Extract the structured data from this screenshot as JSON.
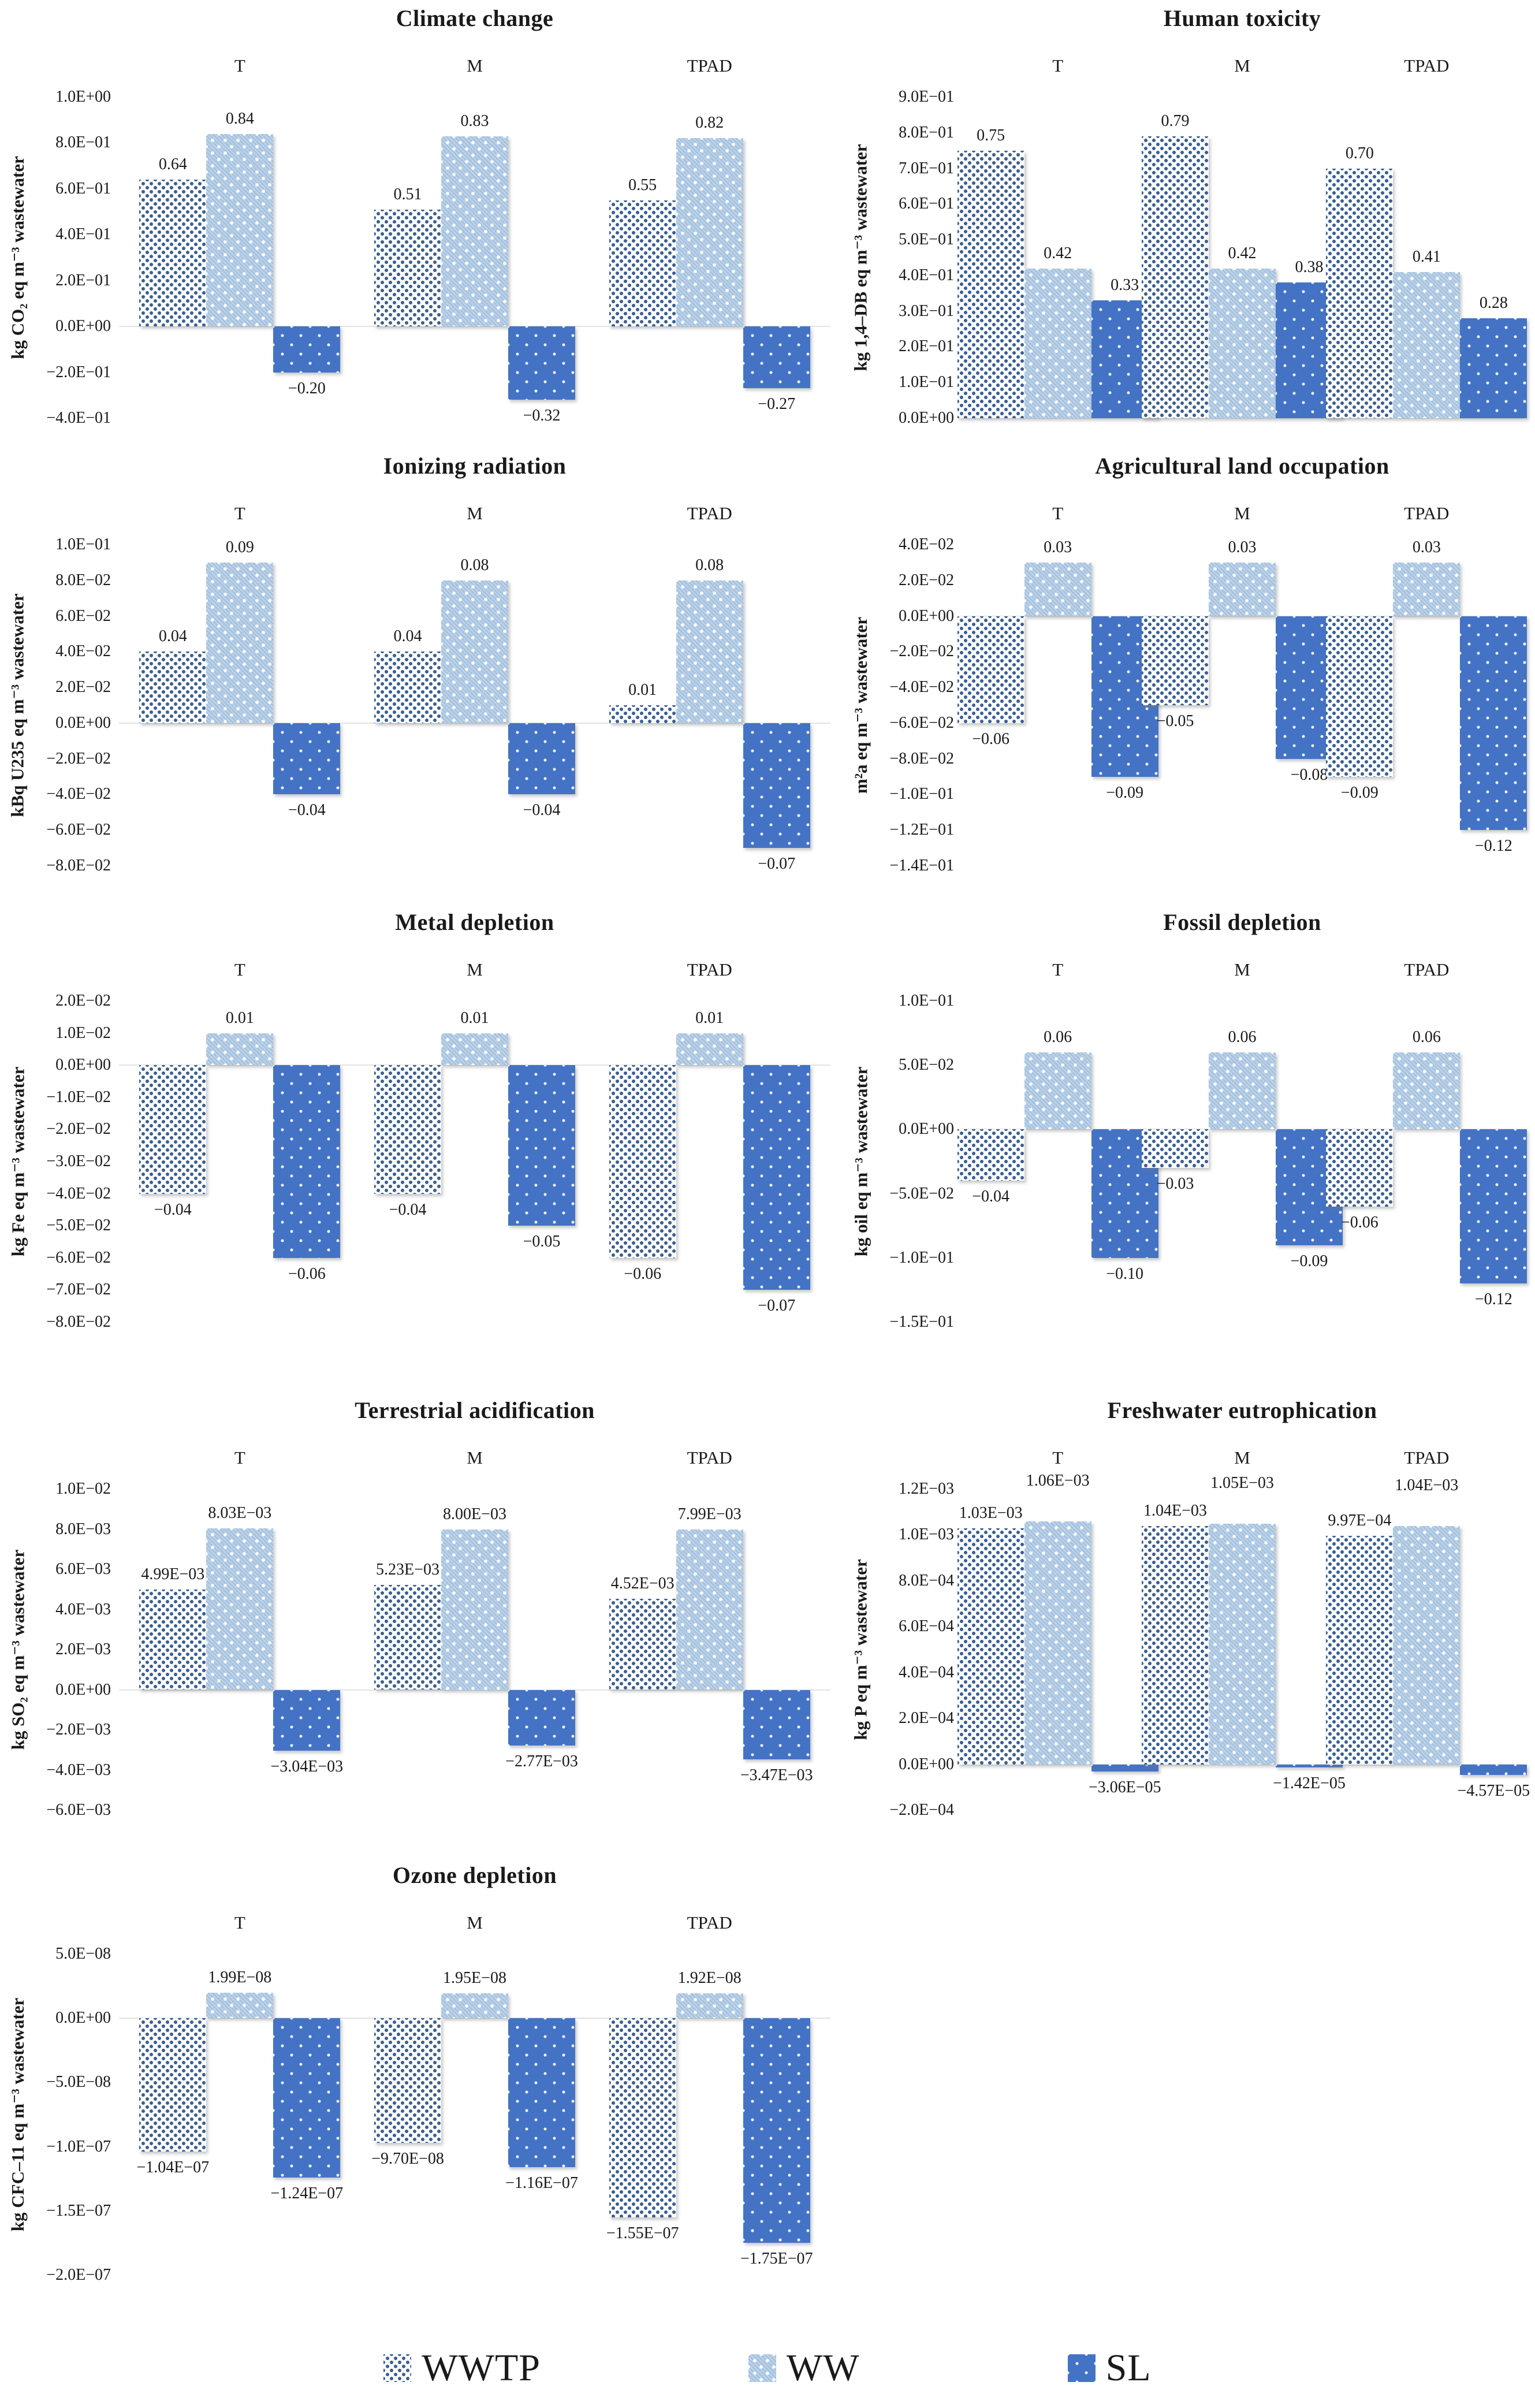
{
  "legend": {
    "items": [
      {
        "label": "WWTP",
        "series": "wwtp"
      },
      {
        "label": "WW",
        "series": "ww"
      },
      {
        "label": "SL",
        "series": "sl"
      }
    ]
  },
  "colors": {
    "wwtp_dot": "#3a5f91",
    "ww_background": "#a6c3e0",
    "sl_background": "#4473c5",
    "zero_line": "#e3e3e3",
    "text": "#1a1a1a"
  },
  "chart_data": [
    {
      "type": "bar",
      "title": "Climate change",
      "ylabel": "kg CO₂ eq m⁻³ wastewater",
      "ylim": [
        -0.4,
        1.0
      ],
      "legend_position": "bottom",
      "grid": false,
      "categories": [
        "T",
        "M",
        "TPAD"
      ],
      "series": [
        "WWTP",
        "WW",
        "SL"
      ],
      "ticks": {
        "labels": [
          "1.0E+00",
          "8.0E−01",
          "6.0E−01",
          "4.0E−01",
          "2.0E−01",
          "0.0E+00",
          "−2.0E−01",
          "−4.0E−01"
        ],
        "values": [
          1.0,
          0.8,
          0.6,
          0.4,
          0.2,
          0.0,
          -0.2,
          -0.4
        ]
      },
      "groups": [
        {
          "name": "T",
          "values": [
            0.64,
            0.84,
            -0.2
          ],
          "labels": [
            "0.64",
            "0.84",
            "−0.20"
          ]
        },
        {
          "name": "M",
          "values": [
            0.51,
            0.83,
            -0.32
          ],
          "labels": [
            "0.51",
            "0.83",
            "−0.32"
          ]
        },
        {
          "name": "TPAD",
          "values": [
            0.55,
            0.82,
            -0.27
          ],
          "labels": [
            "0.55",
            "0.82",
            "−0.27"
          ]
        }
      ]
    },
    {
      "type": "bar",
      "title": "Human toxicity",
      "ylabel": "kg 1,4–DB eq m⁻³ wastewater",
      "ylim": [
        0.0,
        0.9
      ],
      "categories": [
        "T",
        "M",
        "TPAD"
      ],
      "series": [
        "WWTP",
        "WW",
        "SL"
      ],
      "ticks": {
        "labels": [
          "9.0E−01",
          "8.0E−01",
          "7.0E−01",
          "6.0E−01",
          "5.0E−01",
          "4.0E−01",
          "3.0E−01",
          "2.0E−01",
          "1.0E−01",
          "0.0E+00"
        ],
        "values": [
          0.9,
          0.8,
          0.7,
          0.6,
          0.5,
          0.4,
          0.3,
          0.2,
          0.1,
          0.0
        ]
      },
      "groups": [
        {
          "name": "T",
          "values": [
            0.75,
            0.42,
            0.33
          ],
          "labels": [
            "0.75",
            "0.42",
            "0.33"
          ]
        },
        {
          "name": "M",
          "values": [
            0.79,
            0.42,
            0.38
          ],
          "labels": [
            "0.79",
            "0.42",
            "0.38"
          ]
        },
        {
          "name": "TPAD",
          "values": [
            0.7,
            0.41,
            0.28
          ],
          "labels": [
            "0.70",
            "0.41",
            "0.28"
          ]
        }
      ]
    },
    {
      "type": "bar",
      "title": "Ionizing radiation",
      "ylabel": "kBq U235 eq m⁻³ wastewater",
      "ylim": [
        -0.08,
        0.1
      ],
      "categories": [
        "T",
        "M",
        "TPAD"
      ],
      "series": [
        "WWTP",
        "WW",
        "SL"
      ],
      "ticks": {
        "labels": [
          "1.0E−01",
          "8.0E−02",
          "6.0E−02",
          "4.0E−02",
          "2.0E−02",
          "0.0E+00",
          "−2.0E−02",
          "−4.0E−02",
          "−6.0E−02",
          "−8.0E−02"
        ],
        "values": [
          0.1,
          0.08,
          0.06,
          0.04,
          0.02,
          0.0,
          -0.02,
          -0.04,
          -0.06,
          -0.08
        ]
      },
      "groups": [
        {
          "name": "T",
          "values": [
            0.04,
            0.09,
            -0.04
          ],
          "labels": [
            "0.04",
            "0.09",
            "−0.04"
          ]
        },
        {
          "name": "M",
          "values": [
            0.04,
            0.08,
            -0.04
          ],
          "labels": [
            "0.04",
            "0.08",
            "−0.04"
          ]
        },
        {
          "name": "TPAD",
          "values": [
            0.01,
            0.08,
            -0.07
          ],
          "labels": [
            "0.01",
            "0.08",
            "−0.07"
          ]
        }
      ]
    },
    {
      "type": "bar",
      "title": "Agricultural land occupation",
      "ylabel": "m²a eq m⁻³ wastewater",
      "ylim": [
        -0.14,
        0.04
      ],
      "categories": [
        "T",
        "M",
        "TPAD"
      ],
      "series": [
        "WWTP",
        "WW",
        "SL"
      ],
      "ticks": {
        "labels": [
          "4.0E−02",
          "2.0E−02",
          "0.0E+00",
          "−2.0E−02",
          "−4.0E−02",
          "−6.0E−02",
          "−8.0E−02",
          "−1.0E−01",
          "−1.2E−01",
          "−1.4E−01"
        ],
        "values": [
          0.04,
          0.02,
          0.0,
          -0.02,
          -0.04,
          -0.06,
          -0.08,
          -0.1,
          -0.12,
          -0.14
        ]
      },
      "groups": [
        {
          "name": "T",
          "values": [
            -0.06,
            0.03,
            -0.09
          ],
          "labels": [
            "−0.06",
            "0.03",
            "−0.09"
          ]
        },
        {
          "name": "M",
          "values": [
            -0.05,
            0.03,
            -0.08
          ],
          "labels": [
            "−0.05",
            "0.03",
            "−0.08"
          ]
        },
        {
          "name": "TPAD",
          "values": [
            -0.09,
            0.03,
            -0.12
          ],
          "labels": [
            "−0.09",
            "0.03",
            "−0.12"
          ]
        }
      ]
    },
    {
      "type": "bar",
      "title": "Metal depletion",
      "ylabel": "kg Fe eq m⁻³ wastewater",
      "ylim": [
        -0.08,
        0.02
      ],
      "categories": [
        "T",
        "M",
        "TPAD"
      ],
      "series": [
        "WWTP",
        "WW",
        "SL"
      ],
      "ticks": {
        "labels": [
          "2.0E−02",
          "1.0E−02",
          "0.0E+00",
          "−1.0E−02",
          "−2.0E−02",
          "−3.0E−02",
          "−4.0E−02",
          "−5.0E−02",
          "−6.0E−02",
          "−7.0E−02",
          "−8.0E−02"
        ],
        "values": [
          0.02,
          0.01,
          0.0,
          -0.01,
          -0.02,
          -0.03,
          -0.04,
          -0.05,
          -0.06,
          -0.07,
          -0.08
        ]
      },
      "groups": [
        {
          "name": "T",
          "values": [
            -0.04,
            0.01,
            -0.06
          ],
          "labels": [
            "−0.04",
            "0.01",
            "−0.06"
          ]
        },
        {
          "name": "M",
          "values": [
            -0.04,
            0.01,
            -0.05
          ],
          "labels": [
            "−0.04",
            "0.01",
            "−0.05"
          ]
        },
        {
          "name": "TPAD",
          "values": [
            -0.06,
            0.01,
            -0.07
          ],
          "labels": [
            "−0.06",
            "0.01",
            "−0.07"
          ]
        }
      ]
    },
    {
      "type": "bar",
      "title": "Fossil depletion",
      "ylabel": "kg oil eq m⁻³ wastewater",
      "ylim": [
        -0.15,
        0.1
      ],
      "categories": [
        "T",
        "M",
        "TPAD"
      ],
      "series": [
        "WWTP",
        "WW",
        "SL"
      ],
      "ticks": {
        "labels": [
          "1.0E−01",
          "5.0E−02",
          "0.0E+00",
          "−5.0E−02",
          "−1.0E−01",
          "−1.5E−01"
        ],
        "values": [
          0.1,
          0.05,
          0.0,
          -0.05,
          -0.1,
          -0.15
        ]
      },
      "groups": [
        {
          "name": "T",
          "values": [
            -0.04,
            0.06,
            -0.1
          ],
          "labels": [
            "−0.04",
            "0.06",
            "−0.10"
          ]
        },
        {
          "name": "M",
          "values": [
            -0.03,
            0.06,
            -0.09
          ],
          "labels": [
            "−0.03",
            "0.06",
            "−0.09"
          ]
        },
        {
          "name": "TPAD",
          "values": [
            -0.06,
            0.06,
            -0.12
          ],
          "labels": [
            "−0.06",
            "0.06",
            "−0.12"
          ]
        }
      ]
    },
    {
      "type": "bar",
      "title": "Terrestrial acidification",
      "ylabel": "kg SO₂ eq m⁻³ wastewater",
      "ylim": [
        -0.006,
        0.01
      ],
      "categories": [
        "T",
        "M",
        "TPAD"
      ],
      "series": [
        "WWTP",
        "WW",
        "SL"
      ],
      "ticks": {
        "labels": [
          "1.0E−02",
          "8.0E−03",
          "6.0E−03",
          "4.0E−03",
          "2.0E−03",
          "0.0E+00",
          "−2.0E−03",
          "−4.0E−03",
          "−6.0E−03"
        ],
        "values": [
          0.01,
          0.008,
          0.006,
          0.004,
          0.002,
          0.0,
          -0.002,
          -0.004,
          -0.006
        ]
      },
      "groups": [
        {
          "name": "T",
          "values": [
            0.00499,
            0.00803,
            -0.00304
          ],
          "labels": [
            "4.99E−03",
            "8.03E−03",
            "−3.04E−03"
          ]
        },
        {
          "name": "M",
          "values": [
            0.00523,
            0.008,
            -0.00277
          ],
          "labels": [
            "5.23E−03",
            "8.00E−03",
            "−2.77E−03"
          ]
        },
        {
          "name": "TPAD",
          "values": [
            0.00452,
            0.00799,
            -0.00347
          ],
          "labels": [
            "4.52E−03",
            "7.99E−03",
            "−3.47E−03"
          ]
        }
      ]
    },
    {
      "type": "bar",
      "title": "Freshwater eutrophication",
      "ylabel": "kg P eq m⁻³ wastewater",
      "ylim": [
        -0.0002,
        0.0012
      ],
      "categories": [
        "T",
        "M",
        "TPAD"
      ],
      "series": [
        "WWTP",
        "WW",
        "SL"
      ],
      "ticks": {
        "labels": [
          "1.2E−03",
          "1.0E−03",
          "8.0E−04",
          "6.0E−04",
          "4.0E−04",
          "2.0E−04",
          "0.0E+00",
          "−2.0E−04"
        ],
        "values": [
          0.0012,
          0.001,
          0.0008,
          0.0006,
          0.0004,
          0.0002,
          0.0,
          -0.0002
        ]
      },
      "label_dy": [
        [
          0,
          -44,
          0
        ],
        [
          0,
          -44,
          0
        ],
        [
          0,
          -44,
          0
        ]
      ],
      "groups": [
        {
          "name": "T",
          "values": [
            0.00103,
            0.00106,
            -3.06e-05
          ],
          "labels": [
            "1.03E−03",
            "1.06E−03",
            "−3.06E−05"
          ]
        },
        {
          "name": "M",
          "values": [
            0.00104,
            0.00105,
            -1.42e-05
          ],
          "labels": [
            "1.04E−03",
            "1.05E−03",
            "−1.42E−05"
          ]
        },
        {
          "name": "TPAD",
          "values": [
            0.000997,
            0.00104,
            -4.57e-05
          ],
          "labels": [
            "9.97E−04",
            "1.04E−03",
            "−4.57E−05"
          ]
        }
      ]
    },
    {
      "type": "bar",
      "title": "Ozone depletion",
      "ylabel": "kg CFC–11 eq m⁻³ wastewater",
      "ylim": [
        -2e-07,
        5e-08
      ],
      "categories": [
        "T",
        "M",
        "TPAD"
      ],
      "series": [
        "WWTP",
        "WW",
        "SL"
      ],
      "ticks": {
        "labels": [
          "5.0E−08",
          "0.0E+00",
          "−5.0E−08",
          "−1.0E−07",
          "−1.5E−07",
          "−2.0E−07"
        ],
        "values": [
          5e-08,
          0.0,
          -5e-08,
          -1e-07,
          -1.5e-07,
          -2e-07
        ]
      },
      "groups": [
        {
          "name": "T",
          "values": [
            -1.04e-07,
            1.99e-08,
            -1.24e-07
          ],
          "labels": [
            "−1.04E−07",
            "1.99E−08",
            "−1.24E−07"
          ]
        },
        {
          "name": "M",
          "values": [
            -9.7e-08,
            1.95e-08,
            -1.16e-07
          ],
          "labels": [
            "−9.70E−08",
            "1.95E−08",
            "−1.16E−07"
          ]
        },
        {
          "name": "TPAD",
          "values": [
            -1.55e-07,
            1.92e-08,
            -1.75e-07
          ],
          "labels": [
            "−1.55E−07",
            "1.92E−08",
            "−1.75E−07"
          ]
        }
      ]
    }
  ]
}
